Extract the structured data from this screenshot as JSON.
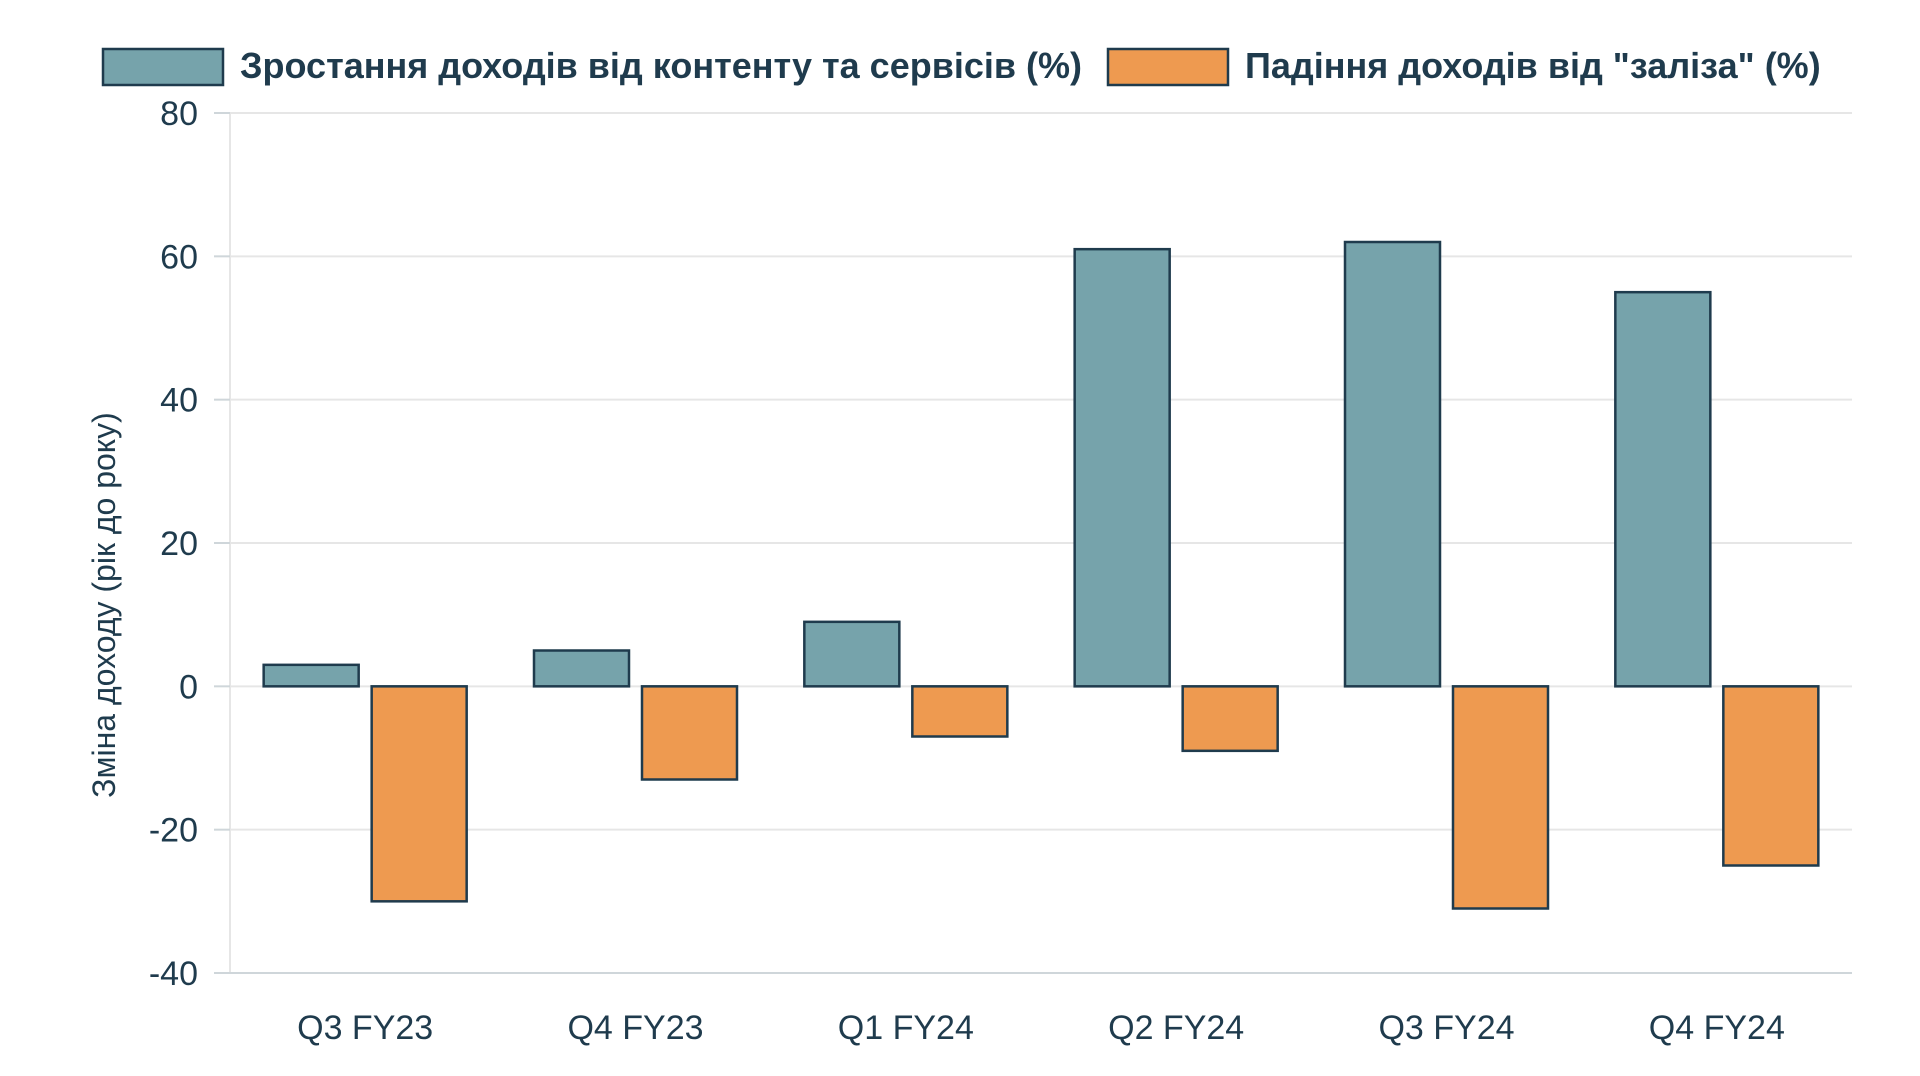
{
  "chart_data": {
    "type": "bar",
    "categories": [
      "Q3 FY23",
      "Q4 FY23",
      "Q1 FY24",
      "Q2 FY24",
      "Q3 FY24",
      "Q4 FY24"
    ],
    "series": [
      {
        "name": "Зростання доходів від контенту та сервісів (%)",
        "values": [
          3,
          5,
          9,
          61,
          62,
          55
        ],
        "color": "#76a3ab"
      },
      {
        "name": "Падіння доходів від \"заліза\" (%)",
        "values": [
          -30,
          -13,
          -7,
          -9,
          -31,
          -25
        ],
        "color": "#ee9a50"
      }
    ],
    "title": "",
    "xlabel": "",
    "ylabel": "Зміна доходу (рік до року)",
    "ylim": [
      -40,
      80
    ],
    "yticks": [
      80,
      60,
      40,
      20,
      0,
      -20,
      -40
    ],
    "grid": true,
    "legend_position": "top",
    "bar_stroke_color": "#1f3b4d",
    "gridline_color": "#e6e6e6"
  }
}
